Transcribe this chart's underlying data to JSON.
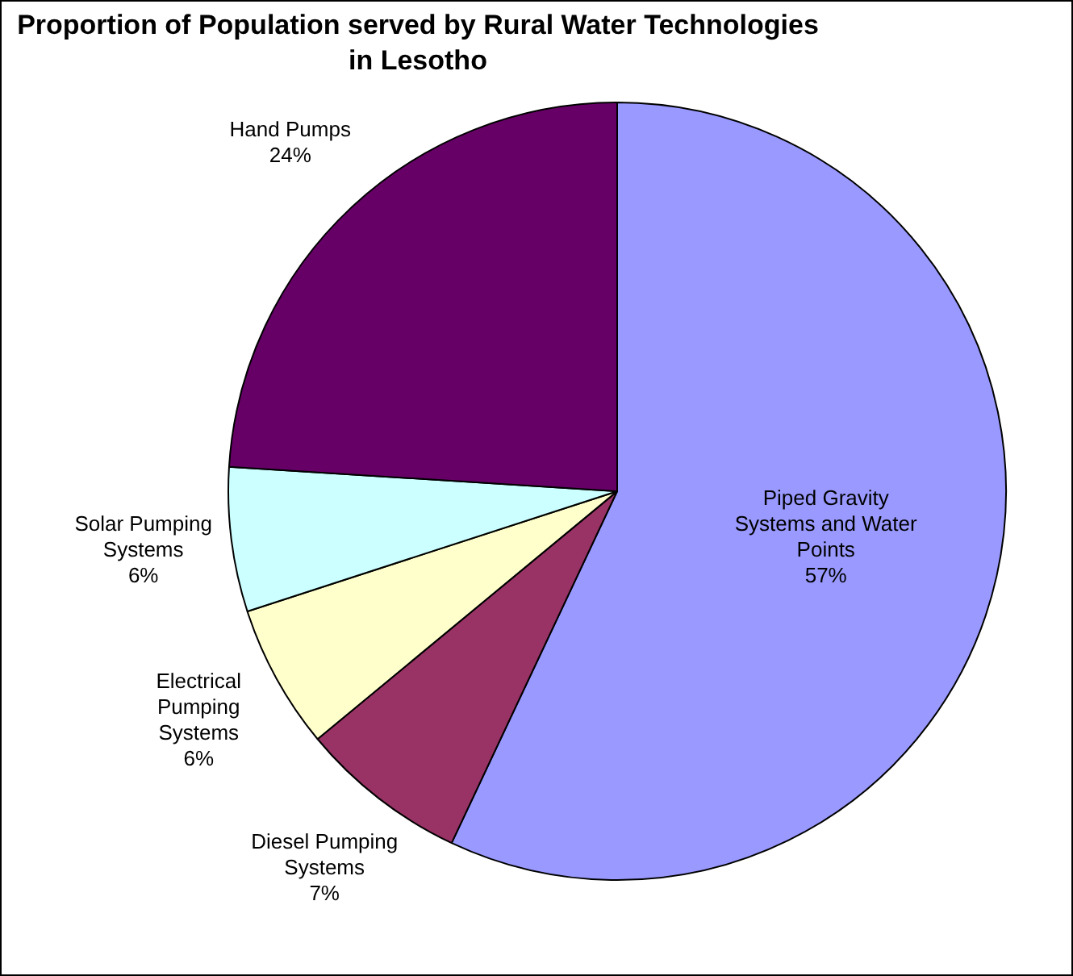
{
  "chart_data": {
    "type": "pie",
    "title": "Proportion of Population served by Rural Water Technologies in Lesotho",
    "categories": [
      "Piped Gravity Systems and Water Points",
      "Diesel Pumping Systems",
      "Electrical Pumping Systems",
      "Solar Pumping Systems",
      "Hand Pumps"
    ],
    "values": [
      57,
      7,
      6,
      6,
      24
    ],
    "value_labels": [
      "57%",
      "7%",
      "6%",
      "6%",
      "24%"
    ],
    "colors": [
      "#9999ff",
      "#993366",
      "#ffffcc",
      "#ccffff",
      "#660066"
    ],
    "legend": false
  }
}
